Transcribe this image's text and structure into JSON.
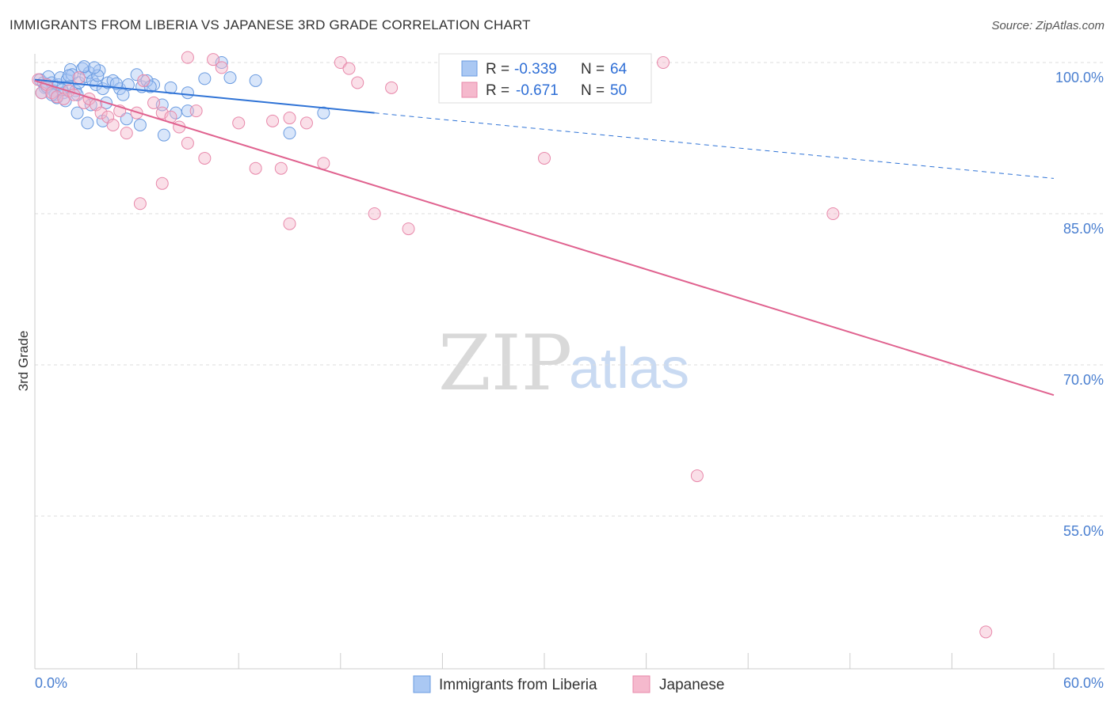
{
  "title": "IMMIGRANTS FROM LIBERIA VS JAPANESE 3RD GRADE CORRELATION CHART",
  "source": "Source: ZipAtlas.com",
  "watermark": {
    "zip": "ZIP",
    "atlas": "atlas"
  },
  "chart_data": {
    "type": "scatter",
    "xlabel": "",
    "ylabel": "3rd Grade",
    "xlim": [
      0,
      60
    ],
    "ylim": [
      40,
      102
    ],
    "x_tick_labels": {
      "min": "0.0%",
      "max": "60.0%"
    },
    "y_ticks": [
      100,
      85,
      70,
      55
    ],
    "y_tick_labels": [
      "100.0%",
      "85.0%",
      "70.0%",
      "55.0%"
    ],
    "legend_position": "top-center",
    "legend": [
      {
        "r_label": "R =",
        "r_value": "-0.339",
        "n_label": "N =",
        "n_value": "64"
      },
      {
        "r_label": "R =",
        "r_value": "-0.671",
        "n_label": "N =",
        "n_value": "50"
      }
    ],
    "series": [
      {
        "name": "Immigrants from Liberia",
        "color": "#6a9be0",
        "fill": "#aac8f3",
        "trend": {
          "x0": 0,
          "y0": 98.3,
          "x1": 20,
          "y1": 95.0,
          "dash_x1": 60,
          "dash_y1": 88.5
        },
        "points": [
          [
            0.3,
            98.3
          ],
          [
            0.5,
            98.0
          ],
          [
            0.6,
            97.5
          ],
          [
            0.8,
            98.6
          ],
          [
            1.0,
            98.0
          ],
          [
            1.1,
            97.2
          ],
          [
            1.2,
            96.8
          ],
          [
            1.4,
            97.8
          ],
          [
            1.5,
            98.5
          ],
          [
            1.7,
            97.0
          ],
          [
            1.9,
            98.3
          ],
          [
            2.0,
            97.6
          ],
          [
            2.1,
            99.3
          ],
          [
            2.2,
            98.8
          ],
          [
            2.4,
            97.2
          ],
          [
            2.6,
            98.0
          ],
          [
            2.8,
            99.4
          ],
          [
            3.0,
            98.6
          ],
          [
            3.2,
            99.0
          ],
          [
            3.4,
            98.2
          ],
          [
            3.6,
            97.8
          ],
          [
            3.8,
            99.2
          ],
          [
            4.0,
            97.4
          ],
          [
            4.3,
            98.0
          ],
          [
            4.6,
            98.2
          ],
          [
            5.0,
            97.4
          ],
          [
            5.5,
            97.8
          ],
          [
            6.0,
            98.8
          ],
          [
            6.3,
            97.6
          ],
          [
            7.0,
            97.8
          ],
          [
            8.0,
            97.5
          ],
          [
            9.0,
            97.0
          ],
          [
            10.0,
            98.4
          ],
          [
            11.0,
            100.0
          ],
          [
            11.5,
            98.5
          ],
          [
            1.3,
            96.5
          ],
          [
            1.8,
            96.2
          ],
          [
            2.5,
            96.8
          ],
          [
            3.3,
            95.8
          ],
          [
            4.2,
            96.0
          ],
          [
            5.2,
            96.8
          ],
          [
            6.6,
            98.2
          ],
          [
            7.5,
            95.8
          ],
          [
            8.3,
            95.0
          ],
          [
            2.5,
            95.0
          ],
          [
            3.1,
            94.0
          ],
          [
            4.0,
            94.2
          ],
          [
            5.4,
            94.4
          ],
          [
            6.2,
            93.8
          ],
          [
            7.6,
            92.8
          ],
          [
            9.0,
            95.2
          ],
          [
            13.0,
            98.2
          ],
          [
            15.0,
            93.0
          ],
          [
            17.0,
            95.0
          ],
          [
            0.4,
            97.0
          ],
          [
            0.7,
            97.6
          ],
          [
            1.0,
            96.8
          ],
          [
            1.6,
            97.3
          ],
          [
            2.0,
            98.7
          ],
          [
            3.7,
            98.7
          ],
          [
            4.8,
            97.9
          ],
          [
            6.8,
            97.6
          ],
          [
            2.9,
            99.6
          ],
          [
            3.5,
            99.5
          ]
        ]
      },
      {
        "name": "Japanese",
        "color": "#e888aa",
        "fill": "#f5b9cd",
        "trend": {
          "x0": 0,
          "y0": 98.2,
          "x1": 60,
          "y1": 67.0
        },
        "points": [
          [
            0.2,
            98.3
          ],
          [
            0.4,
            97.0
          ],
          [
            0.7,
            97.8
          ],
          [
            1.0,
            97.0
          ],
          [
            1.3,
            96.6
          ],
          [
            1.7,
            96.4
          ],
          [
            2.0,
            97.2
          ],
          [
            2.3,
            96.8
          ],
          [
            2.6,
            98.5
          ],
          [
            2.9,
            96.0
          ],
          [
            3.2,
            96.4
          ],
          [
            3.6,
            95.8
          ],
          [
            3.9,
            95.0
          ],
          [
            4.3,
            94.6
          ],
          [
            4.6,
            93.8
          ],
          [
            5.0,
            95.2
          ],
          [
            5.4,
            93.0
          ],
          [
            6.0,
            95.0
          ],
          [
            6.4,
            98.2
          ],
          [
            7.0,
            96.0
          ],
          [
            7.5,
            95.0
          ],
          [
            8.0,
            94.6
          ],
          [
            8.5,
            93.6
          ],
          [
            9.0,
            92.0
          ],
          [
            9.5,
            95.2
          ],
          [
            10.0,
            90.5
          ],
          [
            11.0,
            99.5
          ],
          [
            12.0,
            94.0
          ],
          [
            13.0,
            89.5
          ],
          [
            14.0,
            94.2
          ],
          [
            14.5,
            89.5
          ],
          [
            15.0,
            94.5
          ],
          [
            16.0,
            94.0
          ],
          [
            17.0,
            90.0
          ],
          [
            18.0,
            100.0
          ],
          [
            18.5,
            99.4
          ],
          [
            19.0,
            98.0
          ],
          [
            20.0,
            85.0
          ],
          [
            21.0,
            97.5
          ],
          [
            22.0,
            83.5
          ],
          [
            6.2,
            86.0
          ],
          [
            7.5,
            88.0
          ],
          [
            9.0,
            100.5
          ],
          [
            10.5,
            100.3
          ],
          [
            15.0,
            84.0
          ],
          [
            30.0,
            90.5
          ],
          [
            37.0,
            100.0
          ],
          [
            47.0,
            85.0
          ],
          [
            39.0,
            59.0
          ],
          [
            56.0,
            43.5
          ]
        ]
      }
    ]
  }
}
